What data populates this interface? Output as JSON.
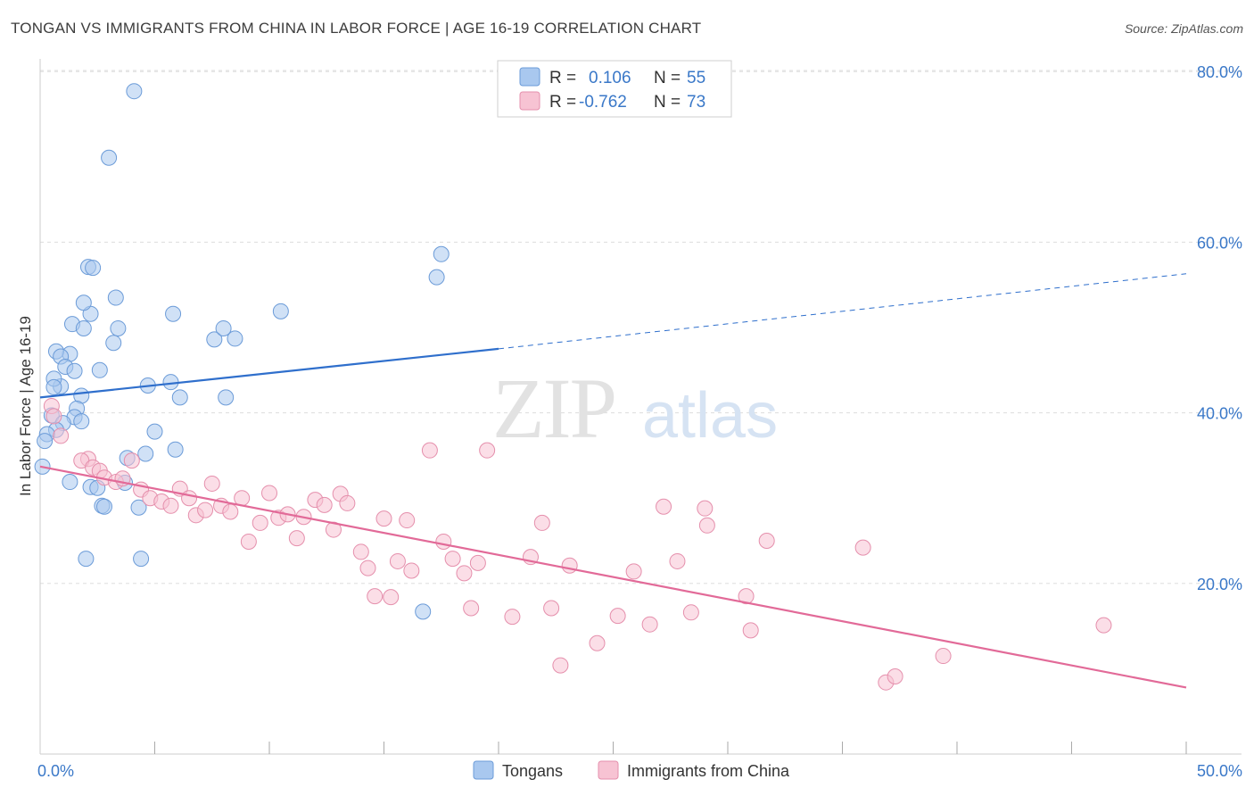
{
  "title": "TONGAN VS IMMIGRANTS FROM CHINA IN LABOR FORCE | AGE 16-19 CORRELATION CHART",
  "source": "Source: ZipAtlas.com",
  "watermark": {
    "zip": "ZIP",
    "atlas": "atlas"
  },
  "colors": {
    "blue_fill": "#a9c8ef",
    "blue_stroke": "#6b9bd8",
    "blue_line": "#2f6fcc",
    "pink_fill": "#f7c3d3",
    "pink_stroke": "#e58fac",
    "pink_line": "#e26a98",
    "grid": "#dddddd",
    "axis_label": "#3a78c8"
  },
  "legend": {
    "rows": [
      {
        "r_label": "R =",
        "r_value": "0.106",
        "n_label": "N =",
        "n_value": "55",
        "color": "blue"
      },
      {
        "r_label": "R =",
        "r_value": "-0.762",
        "n_label": "N =",
        "n_value": "73",
        "color": "pink"
      }
    ]
  },
  "bottom_legend": [
    {
      "label": "Tongans",
      "color": "blue"
    },
    {
      "label": "Immigrants from China",
      "color": "pink"
    }
  ],
  "chart_data": {
    "type": "scatter",
    "title": "TONGAN VS IMMIGRANTS FROM CHINA IN LABOR FORCE | AGE 16-19 CORRELATION CHART",
    "xlabel": "",
    "ylabel": "In Labor Force | Age 16-19",
    "xlim": [
      0,
      50
    ],
    "ylim": [
      0,
      84
    ],
    "x_tick_labels": [
      {
        "value": 0,
        "label": "0.0%"
      },
      {
        "value": 50,
        "label": "50.0%"
      }
    ],
    "x_minor_ticks": [
      5,
      10,
      15,
      20,
      25,
      30,
      35,
      40,
      45,
      50
    ],
    "y_ticks": [
      {
        "value": 20,
        "label": "20.0%"
      },
      {
        "value": 40,
        "label": "40.0%"
      },
      {
        "value": 60,
        "label": "60.0%"
      },
      {
        "value": 80,
        "label": "80.0%"
      }
    ],
    "series": [
      {
        "name": "Tongans",
        "color": "blue",
        "r": 0.106,
        "n": 55,
        "trend": {
          "x0": 0,
          "y0": 41.8,
          "x1": 20,
          "y1": 47.5,
          "dash_to_x": 50,
          "dash_to_y": 56.3
        },
        "points": [
          [
            4.1,
            77.7
          ],
          [
            3.0,
            69.9
          ],
          [
            5.8,
            51.6
          ],
          [
            0.9,
            43.1
          ],
          [
            2.2,
            51.6
          ],
          [
            3.3,
            53.5
          ],
          [
            2.1,
            57.1
          ],
          [
            2.3,
            57.0
          ],
          [
            1.9,
            52.9
          ],
          [
            1.4,
            50.4
          ],
          [
            1.9,
            49.9
          ],
          [
            3.4,
            49.9
          ],
          [
            3.2,
            48.2
          ],
          [
            1.3,
            46.9
          ],
          [
            0.7,
            47.2
          ],
          [
            0.9,
            46.6
          ],
          [
            1.1,
            45.4
          ],
          [
            1.5,
            44.9
          ],
          [
            2.6,
            45.0
          ],
          [
            0.6,
            44.0
          ],
          [
            0.6,
            43.0
          ],
          [
            1.8,
            42.0
          ],
          [
            4.7,
            43.2
          ],
          [
            5.7,
            43.6
          ],
          [
            6.1,
            41.8
          ],
          [
            1.6,
            40.5
          ],
          [
            1.5,
            39.5
          ],
          [
            0.5,
            39.7
          ],
          [
            1.0,
            38.8
          ],
          [
            1.8,
            39.0
          ],
          [
            0.7,
            38.0
          ],
          [
            0.3,
            37.5
          ],
          [
            0.2,
            36.7
          ],
          [
            5.0,
            37.8
          ],
          [
            0.1,
            33.7
          ],
          [
            5.9,
            35.7
          ],
          [
            3.8,
            34.7
          ],
          [
            4.6,
            35.2
          ],
          [
            1.3,
            31.9
          ],
          [
            2.2,
            31.3
          ],
          [
            2.5,
            31.2
          ],
          [
            3.7,
            31.8
          ],
          [
            2.7,
            29.1
          ],
          [
            2.8,
            29.0
          ],
          [
            4.3,
            28.9
          ],
          [
            2.0,
            22.9
          ],
          [
            4.4,
            22.9
          ],
          [
            7.6,
            48.6
          ],
          [
            8.5,
            48.7
          ],
          [
            8.0,
            49.9
          ],
          [
            10.5,
            51.9
          ],
          [
            8.1,
            41.8
          ],
          [
            17.5,
            58.6
          ],
          [
            17.3,
            55.9
          ],
          [
            16.7,
            16.7
          ]
        ]
      },
      {
        "name": "Immigrants from China",
        "color": "pink",
        "r": -0.762,
        "n": 73,
        "trend": {
          "x0": 0,
          "y0": 33.7,
          "x1": 50,
          "y1": 7.8
        },
        "points": [
          [
            0.5,
            40.8
          ],
          [
            0.6,
            39.6
          ],
          [
            0.9,
            37.3
          ],
          [
            2.1,
            34.6
          ],
          [
            1.8,
            34.4
          ],
          [
            2.3,
            33.6
          ],
          [
            2.6,
            33.2
          ],
          [
            2.8,
            32.4
          ],
          [
            3.3,
            31.9
          ],
          [
            3.6,
            32.3
          ],
          [
            4.0,
            34.4
          ],
          [
            4.4,
            31.0
          ],
          [
            4.8,
            30.0
          ],
          [
            5.3,
            29.6
          ],
          [
            5.7,
            29.1
          ],
          [
            6.1,
            31.1
          ],
          [
            6.5,
            30.0
          ],
          [
            6.8,
            28.0
          ],
          [
            7.2,
            28.6
          ],
          [
            7.5,
            31.7
          ],
          [
            7.9,
            29.1
          ],
          [
            8.3,
            28.4
          ],
          [
            8.8,
            30.0
          ],
          [
            9.1,
            24.9
          ],
          [
            9.6,
            27.1
          ],
          [
            10.0,
            30.6
          ],
          [
            10.4,
            27.7
          ],
          [
            10.8,
            28.1
          ],
          [
            11.2,
            25.3
          ],
          [
            11.5,
            27.8
          ],
          [
            12.0,
            29.8
          ],
          [
            12.4,
            29.2
          ],
          [
            12.8,
            26.3
          ],
          [
            13.1,
            30.5
          ],
          [
            13.4,
            29.4
          ],
          [
            14.0,
            23.7
          ],
          [
            14.3,
            21.8
          ],
          [
            14.6,
            18.5
          ],
          [
            15.0,
            27.6
          ],
          [
            15.3,
            18.4
          ],
          [
            15.6,
            22.6
          ],
          [
            16.0,
            27.4
          ],
          [
            16.2,
            21.5
          ],
          [
            17.0,
            35.6
          ],
          [
            17.6,
            24.9
          ],
          [
            18.0,
            22.9
          ],
          [
            18.5,
            21.2
          ],
          [
            18.8,
            17.1
          ],
          [
            19.1,
            22.4
          ],
          [
            19.5,
            35.6
          ],
          [
            20.6,
            16.1
          ],
          [
            21.4,
            23.1
          ],
          [
            21.9,
            27.1
          ],
          [
            22.3,
            17.1
          ],
          [
            22.7,
            10.4
          ],
          [
            23.1,
            22.1
          ],
          [
            24.3,
            13.0
          ],
          [
            25.2,
            16.2
          ],
          [
            25.9,
            21.4
          ],
          [
            26.6,
            15.2
          ],
          [
            27.2,
            29.0
          ],
          [
            27.8,
            22.6
          ],
          [
            28.4,
            16.6
          ],
          [
            29.0,
            28.8
          ],
          [
            29.1,
            26.8
          ],
          [
            30.8,
            18.5
          ],
          [
            31.0,
            14.5
          ],
          [
            31.7,
            25.0
          ],
          [
            35.9,
            24.2
          ],
          [
            36.9,
            8.4
          ],
          [
            37.3,
            9.1
          ],
          [
            39.4,
            11.5
          ],
          [
            46.4,
            15.1
          ]
        ]
      }
    ]
  }
}
